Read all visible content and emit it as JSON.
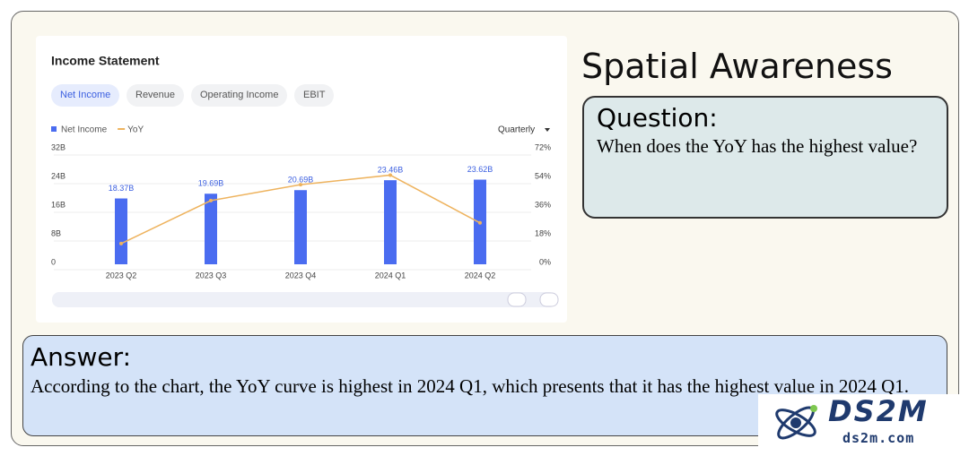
{
  "heading": "Spatial Awareness",
  "question": {
    "label": "Question:",
    "text": "When does the YoY has the highest value?"
  },
  "answer": {
    "label": "Answer:",
    "text": "According to the chart, the YoY curve is highest in 2024 Q1, which presents that it has the highest value in 2024 Q1."
  },
  "logo": {
    "name": "DS2M",
    "site": "ds2m.com"
  },
  "ui": {
    "tabs": [
      "Net Income",
      "Revenue",
      "Operating Income",
      "EBIT"
    ],
    "period": "Quarterly"
  },
  "chart_data": {
    "type": "bar",
    "title": "Income Statement",
    "categories": [
      "2023 Q2",
      "2023 Q3",
      "2023 Q4",
      "2024 Q1",
      "2024 Q2"
    ],
    "series": [
      {
        "name": "Net Income",
        "type": "bar",
        "color": "#4a6cf0",
        "values": [
          18.37,
          19.69,
          20.69,
          23.46,
          23.62
        ],
        "value_labels": [
          "18.37B",
          "19.69B",
          "20.69B",
          "23.46B",
          "23.62B"
        ]
      },
      {
        "name": "YoY",
        "type": "line",
        "axis": "y2",
        "color": "#eeb35e",
        "values": [
          13,
          40,
          50,
          56,
          26
        ]
      }
    ],
    "ylim": [
      0,
      32
    ],
    "yticks": [
      {
        "value": 0,
        "label": "0"
      },
      {
        "value": 8,
        "label": "8B"
      },
      {
        "value": 16,
        "label": "16B"
      },
      {
        "value": 24,
        "label": "24B"
      },
      {
        "value": 32,
        "label": "32B"
      }
    ],
    "y2lim": [
      0,
      72
    ],
    "y2ticks": [
      {
        "value": 0,
        "label": "0%"
      },
      {
        "value": 18,
        "label": "18%"
      },
      {
        "value": 36,
        "label": "36%"
      },
      {
        "value": 54,
        "label": "54%"
      },
      {
        "value": 72,
        "label": "72%"
      }
    ],
    "grid": true,
    "legend": "top-left"
  }
}
